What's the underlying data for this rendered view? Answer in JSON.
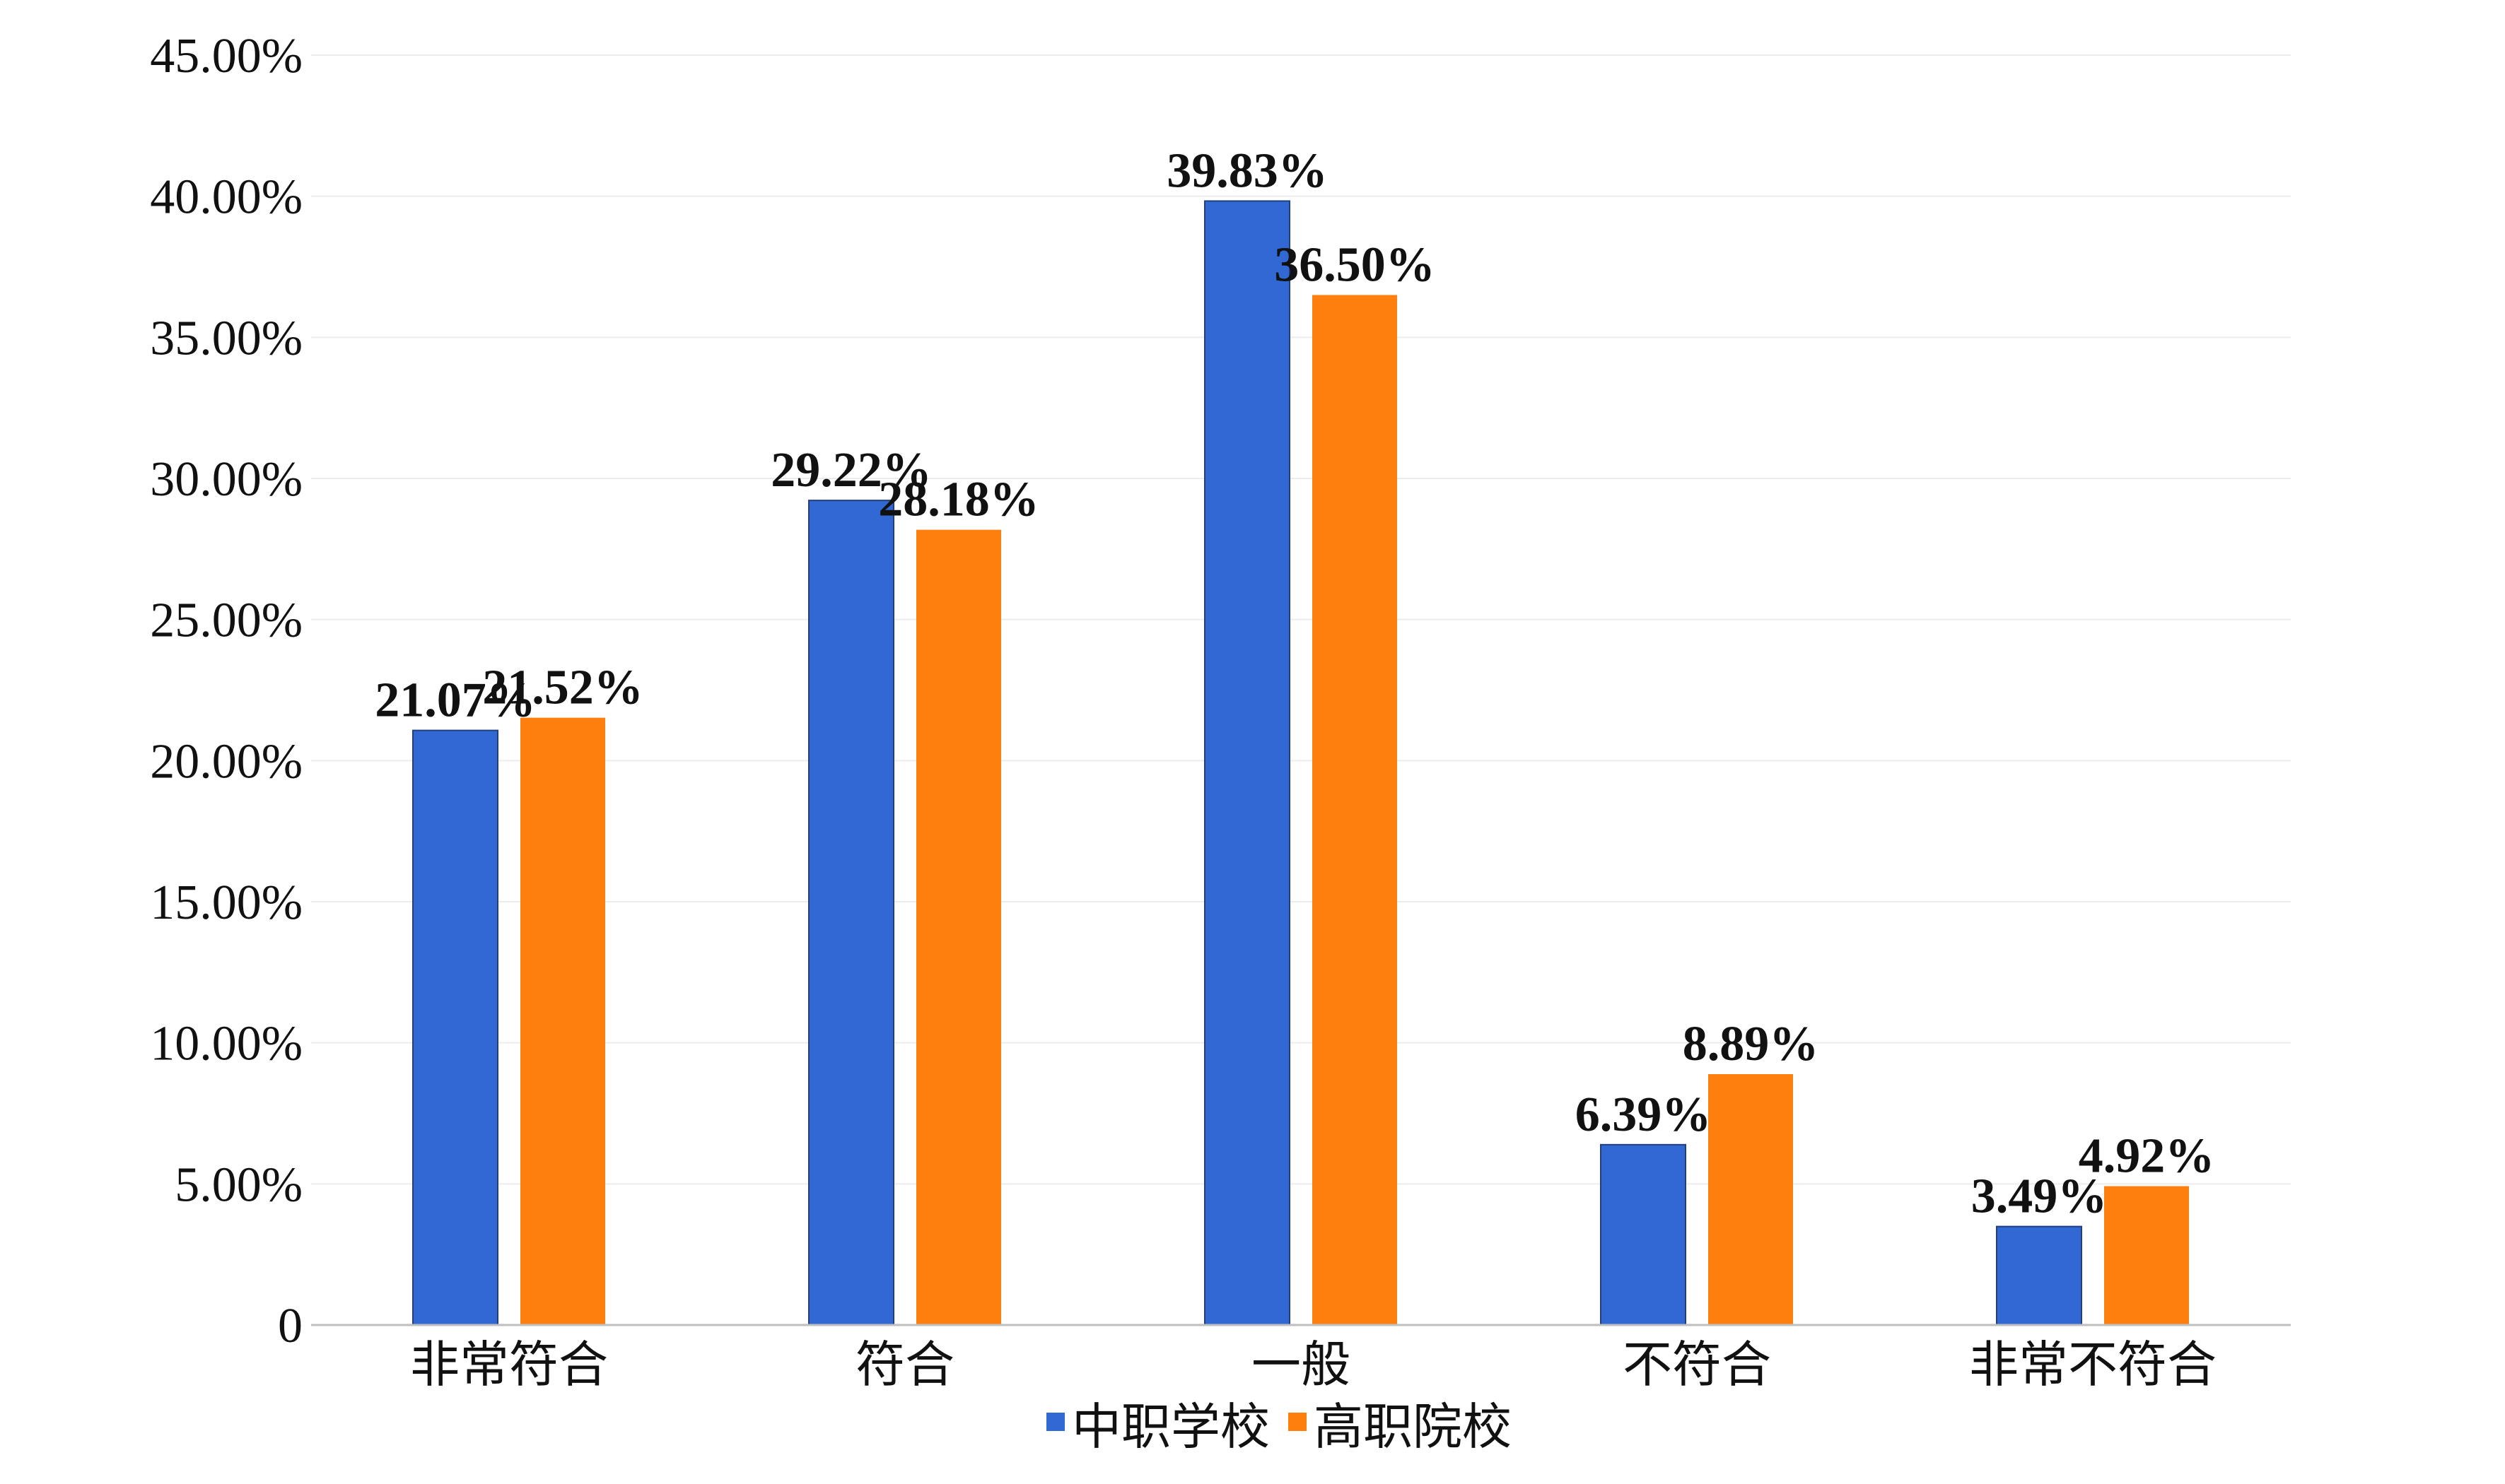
{
  "chart_data": {
    "type": "bar",
    "categories": [
      "非常符合",
      "符合",
      "一般",
      "不符合",
      "非常不符合"
    ],
    "series": [
      {
        "name": "中职学校",
        "color": "#3168D4",
        "values": [
          21.07,
          29.22,
          39.83,
          6.39,
          3.49
        ],
        "labels": [
          "21.07%",
          "29.22%",
          "39.83%",
          "6.39%",
          "3.49%"
        ]
      },
      {
        "name": "高职院校",
        "color": "#FF7F0E",
        "values": [
          21.52,
          28.18,
          36.5,
          8.89,
          4.92
        ],
        "labels": [
          "21.52%",
          "28.18%",
          "36.50%",
          "8.89%",
          "4.92%"
        ]
      }
    ],
    "ylim": [
      0,
      45
    ],
    "yticks": [
      0,
      5,
      10,
      15,
      20,
      25,
      30,
      35,
      40,
      45
    ],
    "ytick_labels": [
      "0",
      "5.00%",
      "10.00%",
      "15.00%",
      "20.00%",
      "25.00%",
      "30.00%",
      "35.00%",
      "40.00%",
      "45.00%"
    ],
    "grid": true,
    "legend_position": "bottom",
    "title": "",
    "xlabel": "",
    "ylabel": ""
  }
}
